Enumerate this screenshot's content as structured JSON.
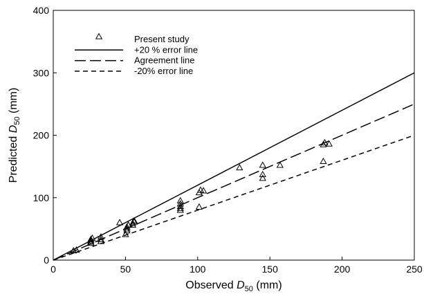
{
  "chart_data": {
    "type": "scatter",
    "title": "",
    "xlabel": {
      "pre": "Observed ",
      "var": "D",
      "sub": "50",
      "post": " (mm)"
    },
    "ylabel": {
      "pre": "Predicted ",
      "var": "D",
      "sub": "50",
      "post": " (mm)"
    },
    "xlim": [
      0,
      250
    ],
    "ylim": [
      0,
      400
    ],
    "x_ticks": [
      0,
      50,
      100,
      150,
      200,
      250
    ],
    "y_ticks": [
      0,
      100,
      200,
      300,
      400
    ],
    "grid": false,
    "legend_position": "top-left",
    "series": [
      {
        "name": "Present study",
        "kind": "scatter",
        "marker": "open-triangle",
        "points": [
          [
            14,
            15
          ],
          [
            16,
            16
          ],
          [
            26,
            27
          ],
          [
            26,
            29
          ],
          [
            26,
            31
          ],
          [
            26,
            33
          ],
          [
            27,
            35
          ],
          [
            33,
            30
          ],
          [
            33,
            33
          ],
          [
            33,
            37
          ],
          [
            46,
            60
          ],
          [
            50,
            41
          ],
          [
            51,
            47
          ],
          [
            51,
            50
          ],
          [
            51,
            53
          ],
          [
            52,
            56
          ],
          [
            55,
            56
          ],
          [
            55,
            59
          ],
          [
            56,
            61
          ],
          [
            56,
            63
          ],
          [
            88,
            80
          ],
          [
            88,
            83
          ],
          [
            88,
            86
          ],
          [
            88,
            90
          ],
          [
            88,
            95
          ],
          [
            101,
            85
          ],
          [
            101,
            108
          ],
          [
            102,
            112
          ],
          [
            104,
            111
          ],
          [
            129,
            148
          ],
          [
            145,
            131
          ],
          [
            145,
            137
          ],
          [
            145,
            152
          ],
          [
            157,
            152
          ],
          [
            187,
            158
          ],
          [
            187,
            185
          ],
          [
            188,
            188
          ],
          [
            191,
            186
          ]
        ]
      },
      {
        "name": "+20 % error line",
        "kind": "line",
        "style": "solid",
        "slope": 1.2,
        "x": [
          0,
          250
        ],
        "y": [
          0,
          300
        ]
      },
      {
        "name": "Agreement line",
        "kind": "line",
        "style": "long-dash",
        "slope": 1.0,
        "x": [
          0,
          250
        ],
        "y": [
          0,
          250
        ]
      },
      {
        "name": "-20% error line",
        "kind": "line",
        "style": "short-dash",
        "slope": 0.8,
        "x": [
          0,
          250
        ],
        "y": [
          0,
          200
        ]
      }
    ]
  }
}
